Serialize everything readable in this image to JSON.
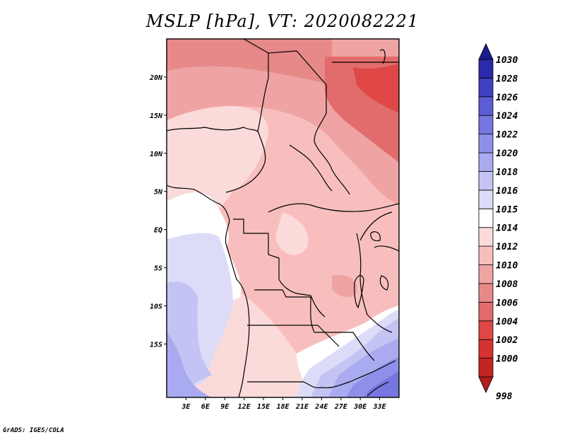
{
  "title": "MSLP [hPa], VT: 2020082221",
  "footer": "GrADS: IGES/COLA",
  "map": {
    "lon_range": [
      0,
      36
    ],
    "lat_range": [
      -22,
      25
    ],
    "lat_ticks": [
      {
        "value": 20,
        "label": "20N"
      },
      {
        "value": 15,
        "label": "15N"
      },
      {
        "value": 10,
        "label": "10N"
      },
      {
        "value": 5,
        "label": "5N"
      },
      {
        "value": 0,
        "label": "EQ"
      },
      {
        "value": -5,
        "label": "5S"
      },
      {
        "value": -10,
        "label": "10S"
      },
      {
        "value": -15,
        "label": "15S"
      }
    ],
    "lon_ticks": [
      {
        "value": 3,
        "label": "3E"
      },
      {
        "value": 6,
        "label": "6E"
      },
      {
        "value": 9,
        "label": "9E"
      },
      {
        "value": 12,
        "label": "12E"
      },
      {
        "value": 15,
        "label": "15E"
      },
      {
        "value": 18,
        "label": "18E"
      },
      {
        "value": 21,
        "label": "21E"
      },
      {
        "value": 24,
        "label": "24E"
      },
      {
        "value": 27,
        "label": "27E"
      },
      {
        "value": 30,
        "label": "30E"
      },
      {
        "value": 33,
        "label": "33E"
      }
    ]
  },
  "colorbar": {
    "levels": [
      {
        "label": "998",
        "color": "#b31c1c"
      },
      {
        "label": "1000",
        "color": "#c42424"
      },
      {
        "label": "1002",
        "color": "#d53232"
      },
      {
        "label": "1004",
        "color": "#e04848"
      },
      {
        "label": "1006",
        "color": "#e26c6c"
      },
      {
        "label": "1008",
        "color": "#e78989"
      },
      {
        "label": "1010",
        "color": "#f0a3a3"
      },
      {
        "label": "1012",
        "color": "#f8bebe"
      },
      {
        "label": "1014",
        "color": "#fbdada"
      },
      {
        "label": "1015",
        "color": "#ffffff"
      },
      {
        "label": "1016",
        "color": "#dcdcf8"
      },
      {
        "label": "1018",
        "color": "#c4c4f4"
      },
      {
        "label": "1020",
        "color": "#aaaaf0"
      },
      {
        "label": "1022",
        "color": "#8f8fea"
      },
      {
        "label": "1024",
        "color": "#7676e0"
      },
      {
        "label": "1026",
        "color": "#5c5cd4"
      },
      {
        "label": "1028",
        "color": "#4040c2"
      },
      {
        "label": "1030",
        "color": "#2a2aaa"
      },
      {
        "label": "",
        "color": "#1c1c8c"
      }
    ]
  },
  "colors": {
    "pressure_low_red": "#e04848",
    "pressure_high_blue": "#7676e0",
    "neutral": "#ffffff"
  }
}
